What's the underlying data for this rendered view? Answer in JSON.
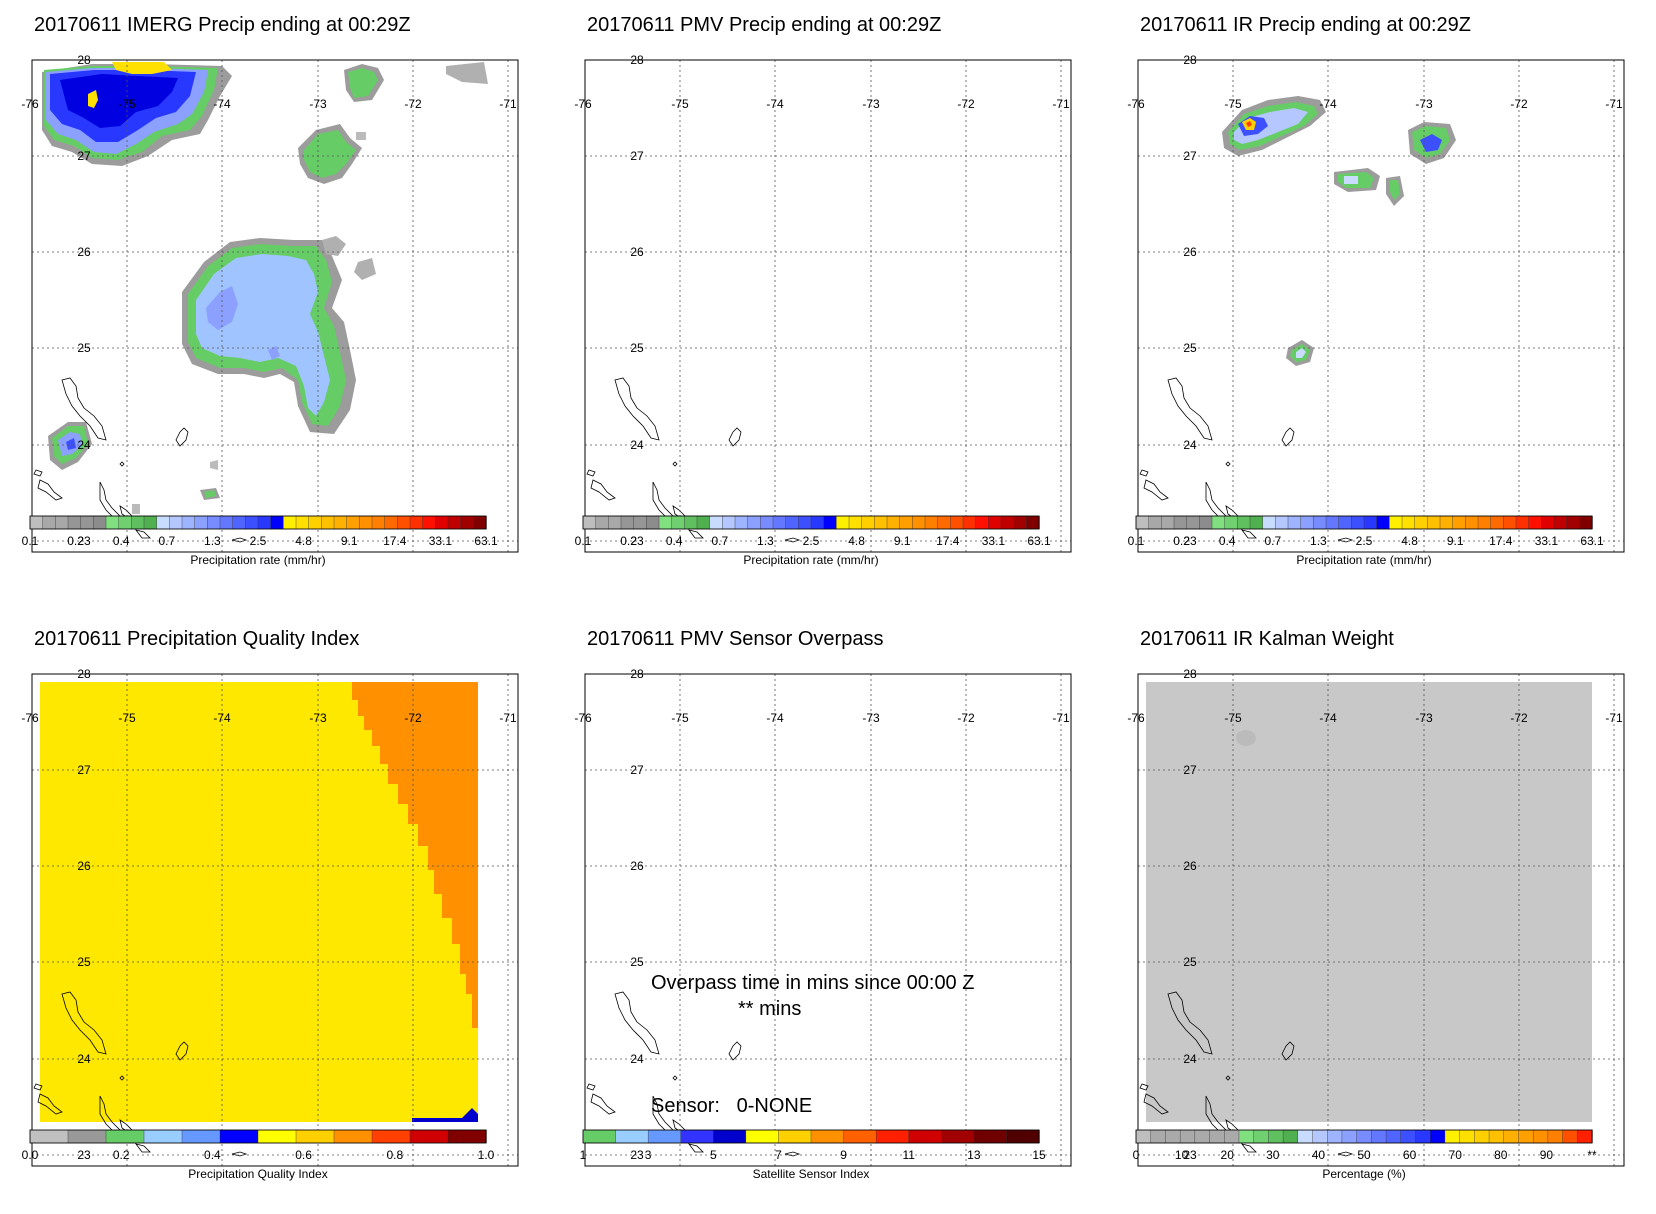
{
  "panels": [
    {
      "id": "p1",
      "title": "20170611 IMERG Precip ending at 00:29Z",
      "cbar_title": "Precipitation rate (mm/hr)",
      "cbar": "precip"
    },
    {
      "id": "p2",
      "title": "20170611 PMV Precip ending at 00:29Z",
      "cbar_title": "Precipitation rate (mm/hr)",
      "cbar": "precip"
    },
    {
      "id": "p3",
      "title": "20170611 IR Precip ending at 00:29Z",
      "cbar_title": "Precipitation rate (mm/hr)",
      "cbar": "precip"
    },
    {
      "id": "p4",
      "title": "20170611 Precipitation Quality Index",
      "cbar_title": "Precipitation Quality Index",
      "cbar": "pqi"
    },
    {
      "id": "p5",
      "title": "20170611 PMV Sensor Overpass",
      "cbar_title": "Satellite Sensor Index",
      "cbar": "sensor"
    },
    {
      "id": "p6",
      "title": "20170611 IR Kalman Weight",
      "cbar_title": "Percentage (%)",
      "cbar": "pct"
    }
  ],
  "map": {
    "lon_labels": [
      "-76",
      "-75",
      "-74",
      "-73",
      "-72",
      "-71"
    ],
    "lat_labels": [
      "28",
      "27",
      "26",
      "25",
      "24",
      "23"
    ]
  },
  "overpass_text": {
    "line1": "Overpass time in mins since 00:00 Z",
    "line2": "** mins",
    "sensor": "Sensor:   0-NONE"
  },
  "colorbars": {
    "precip": {
      "colors": [
        "#bebebe",
        "#a8a8a8",
        "#a8a8a8",
        "#969696",
        "#969696",
        "#8c8c8c",
        "#80e080",
        "#70d070",
        "#60c060",
        "#50b050",
        "#c8dcff",
        "#b4c8ff",
        "#9fb4ff",
        "#8ca0ff",
        "#788cff",
        "#6478ff",
        "#5064ff",
        "#3c50ff",
        "#2838ff",
        "#0000ff",
        "#fff000",
        "#ffe000",
        "#ffd000",
        "#ffc000",
        "#ffb000",
        "#ffa000",
        "#ff9000",
        "#ff8000",
        "#ff6a00",
        "#ff5000",
        "#ff3000",
        "#ff1000",
        "#e00000",
        "#c00000",
        "#a00000",
        "#800000"
      ],
      "labels": [
        "0.1",
        "0.2",
        "0.4",
        "0.7",
        "1.3",
        "2.5",
        "4.8",
        "9.1",
        "17.4",
        "33.1",
        "63.1"
      ]
    },
    "pqi": {
      "colors": [
        "#c0c0c0",
        "#999999",
        "#66cc66",
        "#99ccff",
        "#6699ff",
        "#0000ff",
        "#ffff00",
        "#ffd000",
        "#ff9000",
        "#ff4000",
        "#d00000",
        "#800000"
      ],
      "labels": [
        "0.0",
        "0.2",
        "0.4",
        "0.6",
        "0.8",
        "1.0"
      ]
    },
    "sensor": {
      "colors": [
        "#66cc66",
        "#99ccff",
        "#6699ff",
        "#3333ff",
        "#0000cc",
        "#ffff00",
        "#ffd000",
        "#ff9000",
        "#ff6000",
        "#ff2000",
        "#d00000",
        "#a00000",
        "#700000",
        "#500000"
      ],
      "labels": [
        "1",
        "3",
        "5",
        "7",
        "9",
        "11",
        "13",
        "15"
      ]
    },
    "pct": {
      "colors": [
        "#bebebe",
        "#aaaaaa",
        "#aaaaaa",
        "#aaaaaa",
        "#aaaaaa",
        "#aaaaaa",
        "#aaaaaa",
        "#80e080",
        "#70d070",
        "#60c060",
        "#50b050",
        "#c8dcff",
        "#b4c8ff",
        "#9fb4ff",
        "#8ca0ff",
        "#788cff",
        "#6478ff",
        "#5064ff",
        "#3c50ff",
        "#2838ff",
        "#0000ff",
        "#fff000",
        "#ffe000",
        "#ffd000",
        "#ffc000",
        "#ffb000",
        "#ffa000",
        "#ff9000",
        "#ff8000",
        "#ff5000",
        "#ff2000"
      ],
      "labels": [
        "0",
        "10",
        "20",
        "30",
        "40",
        "50",
        "60",
        "70",
        "80",
        "90",
        "**"
      ]
    }
  }
}
